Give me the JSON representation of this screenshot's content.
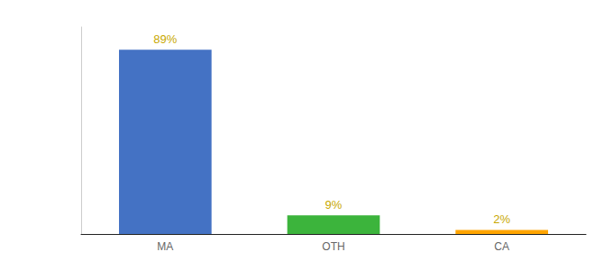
{
  "chart_data": {
    "type": "bar",
    "categories": [
      "MA",
      "OTH",
      "CA"
    ],
    "values": [
      89,
      9,
      2
    ],
    "value_labels": [
      "89%",
      "9%",
      "2%"
    ],
    "data_labels": true,
    "colors": [
      "#4472C4",
      "#3CB43C",
      "#FFA500"
    ],
    "ylim": [
      0,
      100
    ],
    "tick_labels": "x",
    "grid": false
  }
}
